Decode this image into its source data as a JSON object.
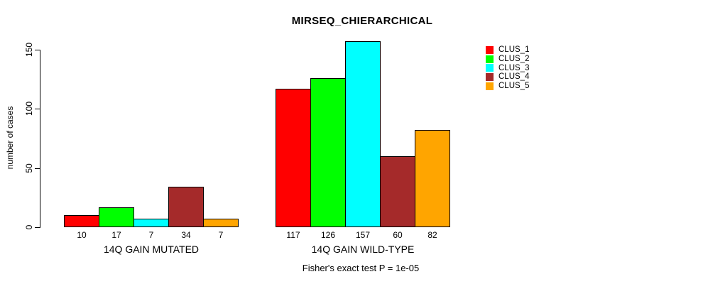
{
  "chart_data": {
    "type": "bar",
    "title": "MIRSEQ_CHIERARCHICAL",
    "ylabel": "number of cases",
    "xlabel": "",
    "yticks": [
      0,
      50,
      100,
      150
    ],
    "ylim": [
      0,
      157
    ],
    "grid": false,
    "legend_position": "top-right",
    "categories": [
      "14Q GAIN MUTATED",
      "14Q GAIN WILD-TYPE"
    ],
    "series": [
      {
        "name": "CLUS_1",
        "color": "#ff0000",
        "values": [
          10,
          117
        ]
      },
      {
        "name": "CLUS_2",
        "color": "#00ff00",
        "values": [
          17,
          126
        ]
      },
      {
        "name": "CLUS_3",
        "color": "#00ffff",
        "values": [
          7,
          157
        ]
      },
      {
        "name": "CLUS_4",
        "color": "#a52a2a",
        "values": [
          34,
          60
        ]
      },
      {
        "name": "CLUS_5",
        "color": "#ffa500",
        "values": [
          7,
          82
        ]
      }
    ],
    "annotation": "Fisher's exact test P = 1e-05"
  }
}
